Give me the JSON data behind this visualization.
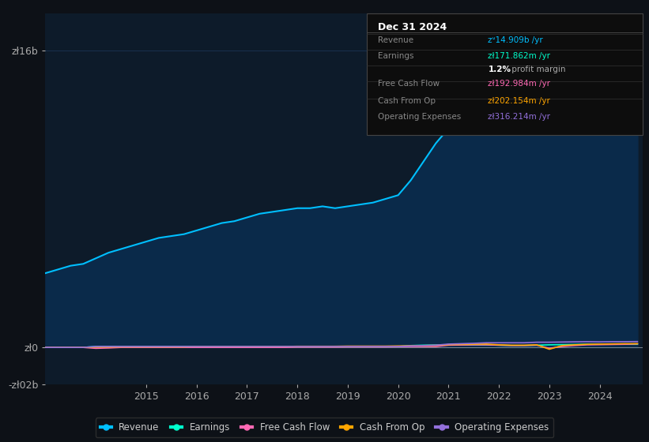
{
  "bg_color": "#0d1117",
  "plot_bg_color": "#0d1b2a",
  "grid_color": "#1e3a5f",
  "title_box": {
    "date": "Dec 31 2024",
    "rows": [
      {
        "label": "Revenue",
        "value": "zᐡ14.909b /yr",
        "value_color": "#00bfff"
      },
      {
        "label": "Earnings",
        "value": "zł171.862m /yr",
        "value_color": "#00ffcc"
      },
      {
        "label": "",
        "value": "1.2% profit margin",
        "value_color": "#ffffff"
      },
      {
        "label": "Free Cash Flow",
        "value": "zł192.984m /yr",
        "value_color": "#ff69b4"
      },
      {
        "label": "Cash From Op",
        "value": "zł202.154m /yr",
        "value_color": "#ffa500"
      },
      {
        "label": "Operating Expenses",
        "value": "zł316.214m /yr",
        "value_color": "#9370db"
      }
    ]
  },
  "years": [
    2013.0,
    2013.25,
    2013.5,
    2013.75,
    2014.0,
    2014.25,
    2014.5,
    2014.75,
    2015.0,
    2015.25,
    2015.5,
    2015.75,
    2016.0,
    2016.25,
    2016.5,
    2016.75,
    2017.0,
    2017.25,
    2017.5,
    2017.75,
    2018.0,
    2018.25,
    2018.5,
    2018.75,
    2019.0,
    2019.25,
    2019.5,
    2019.75,
    2020.0,
    2020.25,
    2020.5,
    2020.75,
    2021.0,
    2021.25,
    2021.5,
    2021.75,
    2022.0,
    2022.25,
    2022.5,
    2022.75,
    2023.0,
    2023.25,
    2023.5,
    2023.75,
    2024.0,
    2024.25,
    2024.5,
    2024.75
  ],
  "revenue": [
    4.0,
    4.2,
    4.4,
    4.5,
    4.8,
    5.1,
    5.3,
    5.5,
    5.7,
    5.9,
    6.0,
    6.1,
    6.3,
    6.5,
    6.7,
    6.8,
    7.0,
    7.2,
    7.3,
    7.4,
    7.5,
    7.5,
    7.6,
    7.5,
    7.6,
    7.7,
    7.8,
    8.0,
    8.2,
    9.0,
    10.0,
    11.0,
    11.8,
    12.2,
    12.5,
    12.7,
    13.0,
    13.0,
    12.8,
    13.2,
    13.8,
    14.5,
    14.8,
    14.6,
    14.5,
    14.5,
    14.7,
    14.909
  ],
  "earnings": [
    0.0,
    0.0,
    0.0,
    0.0,
    0.05,
    0.05,
    0.05,
    0.05,
    0.05,
    0.05,
    0.05,
    0.05,
    0.05,
    0.05,
    0.05,
    0.05,
    0.05,
    0.05,
    0.05,
    0.05,
    0.05,
    0.05,
    0.05,
    0.05,
    0.05,
    0.05,
    0.05,
    0.05,
    0.05,
    0.1,
    0.12,
    0.13,
    0.14,
    0.14,
    0.14,
    0.14,
    0.12,
    0.1,
    0.1,
    0.12,
    0.14,
    0.15,
    0.16,
    0.17,
    0.17,
    0.17,
    0.17,
    0.172
  ],
  "free_cash_flow": [
    0.0,
    0.0,
    0.0,
    0.0,
    -0.05,
    -0.03,
    0.0,
    0.0,
    0.0,
    0.0,
    0.0,
    0.0,
    0.0,
    0.0,
    0.0,
    0.0,
    0.0,
    0.0,
    0.0,
    0.0,
    0.02,
    0.02,
    0.02,
    0.02,
    0.03,
    0.03,
    0.03,
    0.03,
    0.04,
    0.05,
    0.05,
    0.05,
    0.12,
    0.13,
    0.14,
    0.14,
    0.12,
    0.1,
    0.1,
    0.12,
    -0.05,
    0.05,
    0.1,
    0.14,
    0.15,
    0.16,
    0.17,
    0.193
  ],
  "cash_from_op": [
    0.0,
    0.0,
    0.0,
    0.0,
    0.02,
    0.02,
    0.03,
    0.03,
    0.03,
    0.03,
    0.03,
    0.03,
    0.05,
    0.05,
    0.05,
    0.05,
    0.05,
    0.05,
    0.05,
    0.05,
    0.06,
    0.06,
    0.06,
    0.06,
    0.07,
    0.07,
    0.07,
    0.07,
    0.08,
    0.09,
    0.1,
    0.11,
    0.15,
    0.16,
    0.17,
    0.18,
    0.14,
    0.12,
    0.12,
    0.14,
    -0.1,
    0.1,
    0.14,
    0.17,
    0.18,
    0.19,
    0.2,
    0.202
  ],
  "operating_expenses": [
    0.0,
    0.0,
    0.0,
    0.0,
    0.05,
    0.05,
    0.05,
    0.05,
    0.05,
    0.05,
    0.05,
    0.05,
    0.05,
    0.05,
    0.05,
    0.05,
    0.05,
    0.05,
    0.05,
    0.05,
    0.05,
    0.05,
    0.05,
    0.05,
    0.05,
    0.05,
    0.05,
    0.05,
    0.05,
    0.08,
    0.1,
    0.12,
    0.18,
    0.2,
    0.22,
    0.25,
    0.25,
    0.25,
    0.25,
    0.28,
    0.28,
    0.29,
    0.3,
    0.31,
    0.3,
    0.31,
    0.31,
    0.316
  ],
  "ylim": [
    -2.0,
    18.0
  ],
  "yticks": [
    -2,
    0,
    16
  ],
  "ytick_labels": [
    "-zł02b",
    "zł0",
    "zł16b"
  ],
  "xticks": [
    2015,
    2016,
    2017,
    2018,
    2019,
    2020,
    2021,
    2022,
    2023,
    2024
  ],
  "legend": [
    {
      "label": "Revenue",
      "color": "#00bfff"
    },
    {
      "label": "Earnings",
      "color": "#00ffcc"
    },
    {
      "label": "Free Cash Flow",
      "color": "#ff69b4"
    },
    {
      "label": "Cash From Op",
      "color": "#ffa500"
    },
    {
      "label": "Operating Expenses",
      "color": "#9370db"
    }
  ],
  "revenue_color": "#00bfff",
  "revenue_fill_color": "#0a2a4a",
  "earnings_color": "#00ffcc",
  "free_cash_flow_color": "#ff69b4",
  "cash_from_op_color": "#ffa500",
  "operating_expenses_color": "#9370db",
  "line_width": 1.5
}
